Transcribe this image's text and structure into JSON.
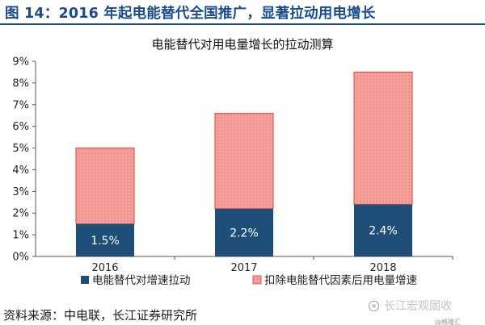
{
  "header": {
    "title": "图 14：2016 年起电能替代全国推广，显著拉动用电增长"
  },
  "chart_data": {
    "type": "bar",
    "stacked": true,
    "title": "电能替代对用电量增长的拉动测算",
    "categories": [
      "2016",
      "2017",
      "2018"
    ],
    "ylim": [
      0,
      9
    ],
    "y_ticks": [
      "0%",
      "1%",
      "2%",
      "3%",
      "4%",
      "5%",
      "6%",
      "7%",
      "8%",
      "9%"
    ],
    "grid": false,
    "legend_position": "bottom",
    "series": [
      {
        "name": "电能替代对增速拉动",
        "values": [
          1.5,
          2.2,
          2.4
        ],
        "data_labels": [
          "1.5%",
          "2.2%",
          "2.4%"
        ],
        "color": "#1f4e79"
      },
      {
        "name": "扣除电能替代因素后用电量增速",
        "values": [
          3.5,
          4.4,
          6.1
        ],
        "color": "#f4a09a",
        "edge_color": "#e05a50"
      }
    ]
  },
  "footer": {
    "source": "资料来源：中电联，长江证券研究所",
    "watermark": "长江宏观固收",
    "corner_mark": "@格隆汇"
  }
}
